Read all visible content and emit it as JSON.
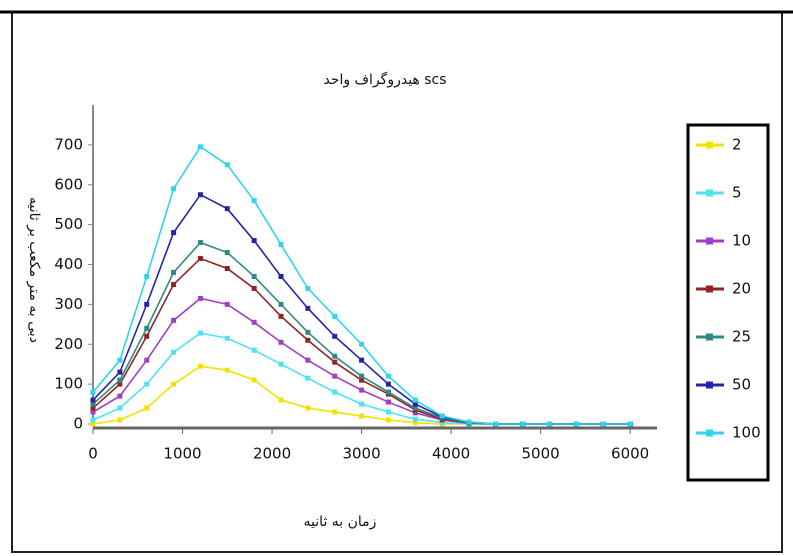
{
  "chart_data": {
    "type": "line",
    "title": "هیدروگراف واحد  scs",
    "x_label": "زمان به ثانیه",
    "y_label": "دبی به متر مکعب بر ثانیه",
    "x": [
      0,
      300,
      600,
      900,
      1200,
      1500,
      1800,
      2100,
      2400,
      2700,
      3000,
      3300,
      3600,
      3900,
      4200,
      4500,
      4800,
      5100,
      5400,
      5700,
      6000
    ],
    "series": [
      {
        "name": "2",
        "color": "#f2e200",
        "values": [
          0,
          10,
          40,
          100,
          145,
          135,
          110,
          60,
          40,
          30,
          20,
          10,
          3,
          0,
          0,
          0,
          0,
          0,
          0,
          0,
          0
        ]
      },
      {
        "name": "5",
        "color": "#4fe3f2",
        "values": [
          10,
          40,
          100,
          180,
          228,
          215,
          185,
          150,
          115,
          80,
          50,
          30,
          12,
          4,
          0,
          0,
          0,
          0,
          0,
          0,
          0
        ]
      },
      {
        "name": "10",
        "color": "#a040c0",
        "values": [
          30,
          70,
          160,
          260,
          315,
          300,
          255,
          205,
          160,
          120,
          85,
          55,
          28,
          10,
          2,
          0,
          0,
          0,
          0,
          0,
          0
        ]
      },
      {
        "name": "20",
        "color": "#902424",
        "values": [
          40,
          100,
          220,
          350,
          415,
          390,
          340,
          270,
          210,
          155,
          110,
          75,
          35,
          12,
          3,
          0,
          0,
          0,
          0,
          0,
          0
        ]
      },
      {
        "name": "25",
        "color": "#2f8a84",
        "values": [
          50,
          110,
          240,
          380,
          455,
          430,
          370,
          300,
          230,
          170,
          120,
          80,
          40,
          15,
          3,
          0,
          0,
          0,
          0,
          0,
          0
        ]
      },
      {
        "name": "50",
        "color": "#2424a8",
        "values": [
          60,
          130,
          300,
          480,
          575,
          540,
          460,
          370,
          290,
          220,
          160,
          100,
          50,
          18,
          5,
          0,
          0,
          0,
          0,
          0,
          0
        ]
      },
      {
        "name": "100",
        "color": "#2fd4f0",
        "values": [
          80,
          160,
          370,
          590,
          695,
          650,
          560,
          450,
          340,
          270,
          200,
          120,
          60,
          20,
          5,
          0,
          0,
          0,
          0,
          0,
          0
        ]
      }
    ],
    "xlim": [
      0,
      6300
    ],
    "ylim": [
      0,
      800
    ],
    "xticks": [
      0,
      1000,
      2000,
      3000,
      4000,
      5000,
      6000
    ],
    "yticks": [
      0,
      100,
      200,
      300,
      400,
      500,
      600,
      700
    ],
    "legend": "right"
  }
}
